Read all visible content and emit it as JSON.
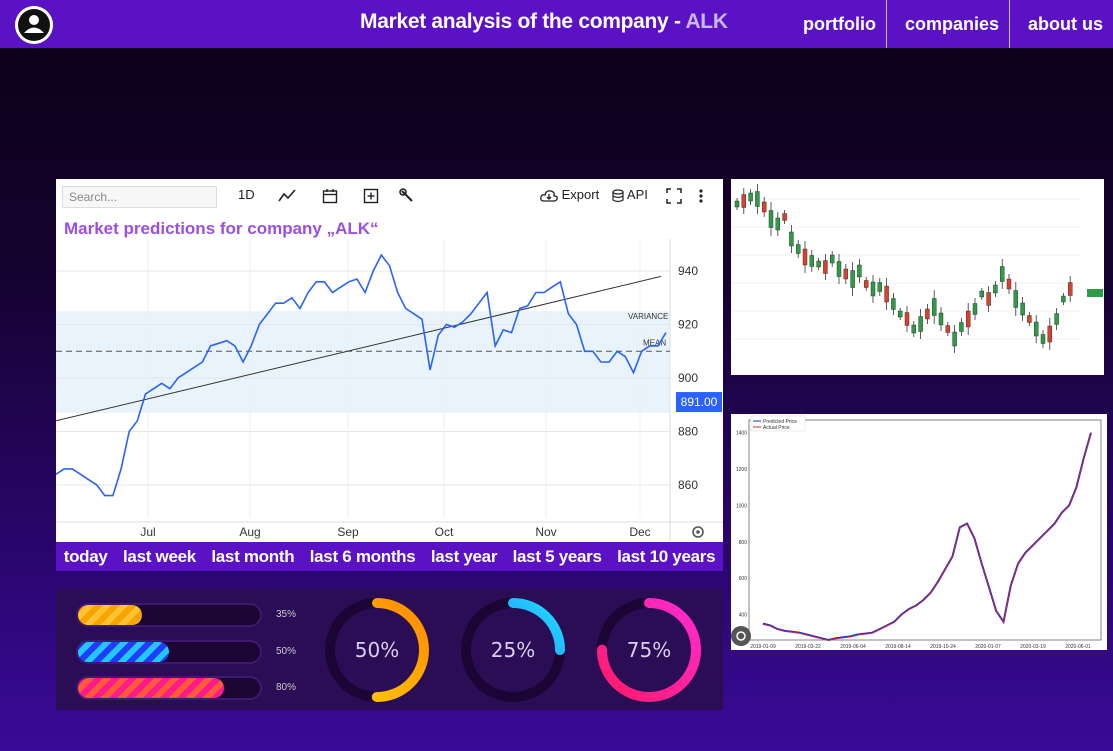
{
  "header": {
    "title_prefix": "Market analysis of the company - ",
    "ticker": "ALK",
    "nav": [
      "portfolio",
      "companies",
      "about us"
    ]
  },
  "toolbar": {
    "search_placeholder": "Search...",
    "interval": "1D",
    "export": "Export",
    "api": "API"
  },
  "main_chart": {
    "title": "Market predictions for company „ALK“",
    "variance_label": "VARIANCE",
    "mean_label": "MEAN",
    "price_badge": "891.00",
    "accent": "#2962ff"
  },
  "chart_data": [
    {
      "type": "line",
      "x_ticks": [
        "Jul",
        "Aug",
        "Sep",
        "Oct",
        "Nov",
        "Dec"
      ],
      "y_ticks": [
        860,
        880,
        900,
        920,
        940
      ],
      "ylim": [
        848,
        952
      ],
      "series": [
        {
          "values": [
            864,
            866,
            866,
            864,
            862,
            860,
            856,
            856,
            866,
            880,
            884,
            894,
            896,
            898,
            896,
            900,
            902,
            904,
            906,
            912,
            913,
            914,
            912,
            906,
            912,
            920,
            924,
            928,
            928,
            930,
            926,
            932,
            936,
            936,
            932,
            934,
            936,
            937,
            932,
            940,
            946,
            942,
            932,
            926,
            924,
            922,
            903,
            916,
            920,
            919,
            921,
            924,
            928,
            932,
            912,
            918,
            917,
            926,
            927,
            932,
            932,
            934,
            936,
            924,
            920,
            910,
            910,
            906,
            906,
            910,
            908,
            902,
            910,
            912,
            912,
            917
          ]
        }
      ],
      "trend_line": {
        "start": 884,
        "end": 938
      },
      "mean": 910,
      "variance_band": [
        887,
        925
      ]
    },
    {
      "type": "bar",
      "note": "candlestick"
    },
    {
      "type": "line",
      "legend": [
        "Predicted Price",
        "Actual Price"
      ],
      "x_ticks": [
        "2019-01-09",
        "2019-03-22",
        "2019-06-04",
        "2019-08-14",
        "2019-10-24",
        "2020-01-07",
        "2020-03-19",
        "2020-06-01"
      ],
      "y_ticks": [
        400,
        600,
        800,
        1000,
        1200,
        1400
      ],
      "ylim": [
        260,
        1470
      ],
      "series": [
        {
          "name": "Predicted Price",
          "values": [
            350,
            340,
            320,
            310,
            305,
            300,
            290,
            280,
            270,
            260,
            270,
            275,
            280,
            290,
            295,
            300,
            320,
            340,
            360,
            400,
            430,
            450,
            480,
            520,
            580,
            650,
            720,
            880,
            900,
            820,
            680,
            550,
            420,
            360,
            560,
            680,
            740,
            780,
            820,
            860,
            900,
            960,
            1000,
            1100,
            1260,
            1400
          ]
        },
        {
          "name": "Actual Price",
          "values": [
            345,
            338,
            318,
            308,
            303,
            298,
            288,
            278,
            268,
            258,
            268,
            273,
            278,
            288,
            293,
            298,
            318,
            338,
            358,
            398,
            428,
            448,
            478,
            518,
            578,
            648,
            718,
            878,
            898,
            818,
            678,
            548,
            418,
            358,
            558,
            678,
            738,
            778,
            818,
            858,
            898,
            958,
            998,
            1098,
            1258,
            1398
          ]
        }
      ]
    }
  ],
  "periods": [
    "today",
    "last week",
    "last month",
    "last 6 months",
    "last year",
    "last 5 years",
    "last 10 years"
  ],
  "progress": {
    "bars": [
      {
        "label": "35%",
        "value": 0.35
      },
      {
        "label": "50%",
        "value": 0.5
      },
      {
        "label": "80%",
        "value": 0.8
      }
    ],
    "rings": [
      {
        "label": "50%",
        "value": 0.5
      },
      {
        "label": "25%",
        "value": 0.25
      },
      {
        "label": "75%",
        "value": 0.75
      }
    ]
  }
}
